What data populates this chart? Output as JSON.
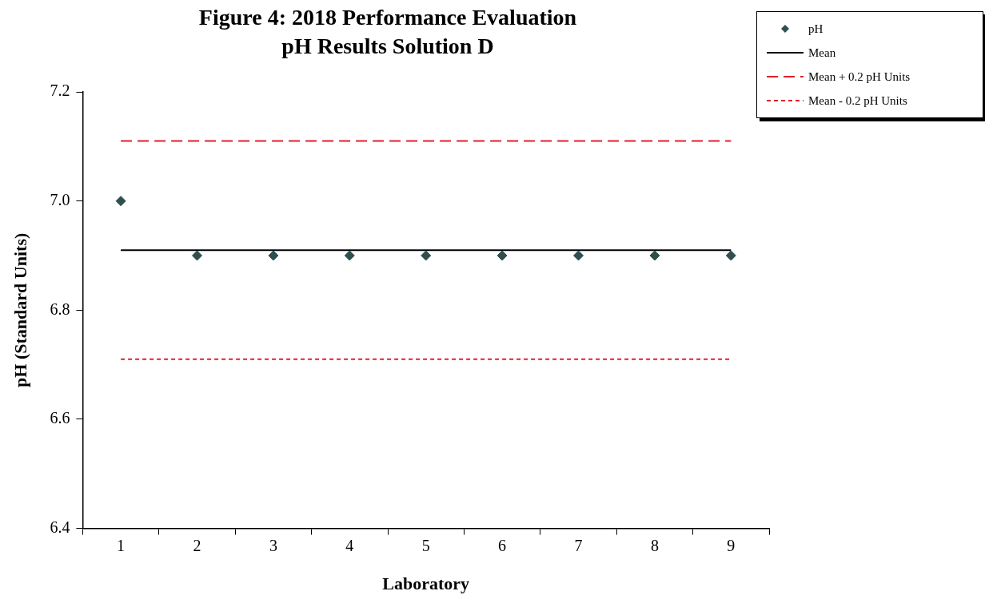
{
  "chart_data": {
    "type": "scatter",
    "title": "Figure 4: 2018 Performance Evaluation",
    "subtitle": "pH Results Solution D",
    "xlabel": "Laboratory",
    "ylabel": "pH (Standard Units)",
    "categories": [
      "1",
      "2",
      "3",
      "4",
      "5",
      "6",
      "7",
      "8",
      "9"
    ],
    "series": [
      {
        "name": "pH",
        "marker": "diamond",
        "color": "#2f4f4f",
        "values": [
          7.0,
          6.9,
          6.9,
          6.9,
          6.9,
          6.9,
          6.9,
          6.9,
          6.9
        ]
      },
      {
        "name": "Mean",
        "type": "line",
        "marker": "none",
        "line_style": "solid",
        "color": "#000000",
        "values": [
          6.91,
          6.91,
          6.91,
          6.91,
          6.91,
          6.91,
          6.91,
          6.91,
          6.91
        ]
      },
      {
        "name": "Mean + 0.2 pH Units",
        "type": "line",
        "marker": "none",
        "line_style": "dashed",
        "color": "#e0202a",
        "values": [
          7.11,
          7.11,
          7.11,
          7.11,
          7.11,
          7.11,
          7.11,
          7.11,
          7.11
        ]
      },
      {
        "name": "Mean - 0.2 pH Units",
        "type": "line",
        "marker": "none",
        "line_style": "dotted",
        "color": "#e0202a",
        "values": [
          6.71,
          6.71,
          6.71,
          6.71,
          6.71,
          6.71,
          6.71,
          6.71,
          6.71
        ]
      }
    ],
    "ylim": [
      6.4,
      7.2
    ],
    "yticks": [
      {
        "value": 6.4,
        "label": "6.4"
      },
      {
        "value": 6.6,
        "label": "6.6"
      },
      {
        "value": 6.8,
        "label": "6.8"
      },
      {
        "value": 7.0,
        "label": "7.0"
      },
      {
        "value": 7.2,
        "label": "7.2"
      }
    ],
    "grid": false,
    "legend": "top right"
  }
}
